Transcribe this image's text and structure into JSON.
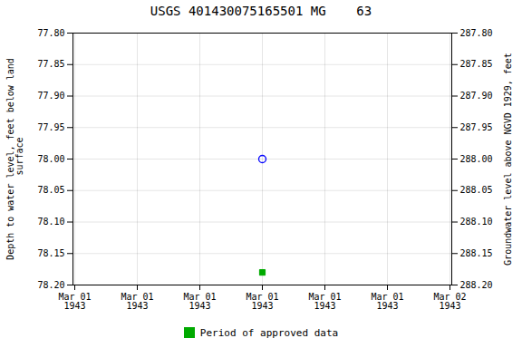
{
  "chart_data": {
    "type": "scatter",
    "title": "USGS 401430075165501 MG    63",
    "ylabel": "Depth to water level, feet below land\n surface",
    "y2label": "Groundwater level above NGVD 1929, feet",
    "categories": [
      "Mar 01\n1943",
      "Mar 01\n1943",
      "Mar 01\n1943",
      "Mar 01\n1943",
      "Mar 01\n1943",
      "Mar 01\n1943",
      "Mar 02\n1943"
    ],
    "series": [
      {
        "color": "#0000ff",
        "marker": "circle",
        "values": [
          null,
          null,
          null,
          78.0,
          null,
          null,
          null
        ]
      },
      {
        "name": "Period of approved data",
        "color": "#00aa00",
        "marker": "square",
        "values": [
          null,
          null,
          null,
          78.18,
          null,
          null,
          null
        ]
      }
    ],
    "ylim": [
      78.2,
      77.8
    ],
    "yticks": [
      {
        "value": 77.8,
        "label": "77.80"
      },
      77.85,
      {
        "value": 77.9,
        "label": "77.90"
      },
      77.95,
      {
        "value": 78.0,
        "label": "78.00"
      },
      78.05,
      {
        "value": 78.1,
        "label": "78.10"
      },
      78.15,
      {
        "value": 78.2,
        "label": "78.20"
      }
    ],
    "y2lim": [
      288.2,
      287.8
    ],
    "y2ticks": [
      {
        "value": 288.2,
        "label": "288.20"
      },
      288.15,
      {
        "value": 288.1,
        "label": "288.10"
      },
      288.05,
      {
        "value": 288.0,
        "label": "288.00"
      },
      287.95,
      {
        "value": 287.9,
        "label": "287.90"
      },
      287.85,
      {
        "value": 287.8,
        "label": "287.80"
      }
    ],
    "grid": true,
    "legend": "bottom"
  }
}
